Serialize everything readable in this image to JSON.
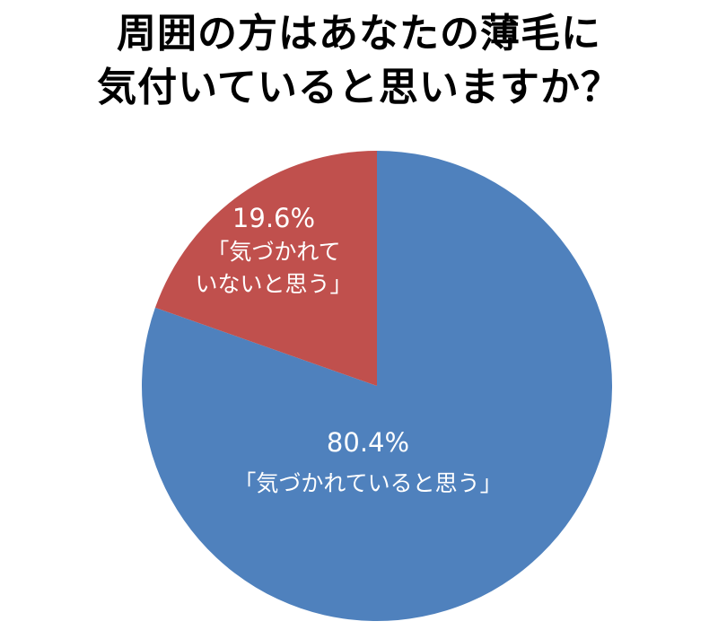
{
  "title_lines": [
    "周囲の方はあなたの薄毛に",
    "気付いていると思いますか？"
  ],
  "chart_data": {
    "type": "pie",
    "title": "周囲の方はあなたの薄毛に気付いていると思いますか？",
    "start": "12 o'clock",
    "direction": "clockwise",
    "slices": [
      {
        "category": "「気づかれていると思う」",
        "label_lines": [
          "「気づかれていると思う」"
        ],
        "value": 80.4,
        "value_label": "80.4%",
        "color": "#4F81BD"
      },
      {
        "category": "「気づかれていないと思う」",
        "label_lines": [
          "「気づかれて",
          "いないと思う」"
        ],
        "value": 19.6,
        "value_label": "19.6%",
        "color": "#C0504D"
      }
    ]
  }
}
